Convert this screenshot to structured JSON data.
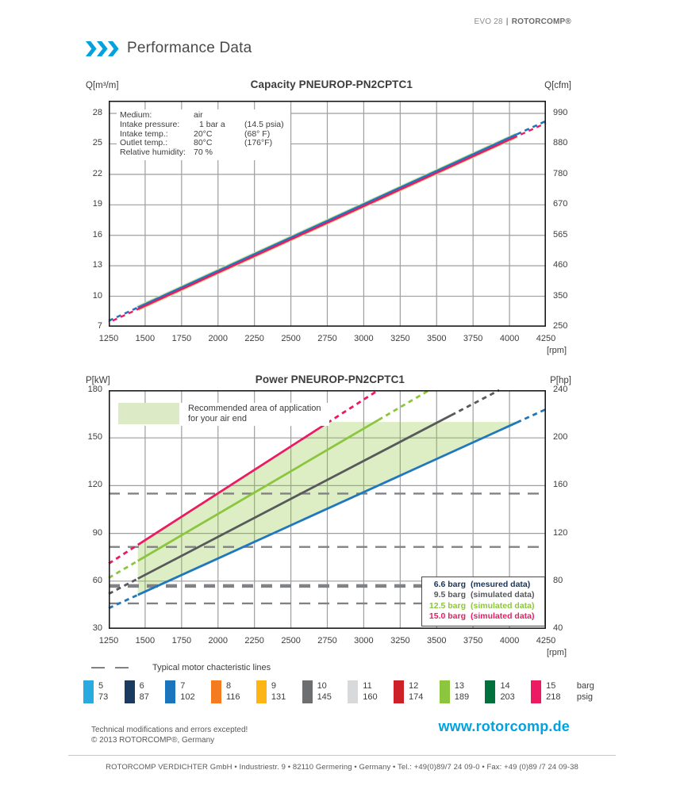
{
  "header": {
    "model": "EVO 28",
    "divider": "|",
    "brand": "ROTORCOMP®",
    "page_title": "Performance Data",
    "accent_color": "#00A3E0"
  },
  "chart_data": [
    {
      "id": "capacity",
      "type": "line",
      "title": "Capacity PNEUROP-PN2CPTC1",
      "y_unit_left": "Q[m³/m]",
      "y_unit_right": "Q[cfm]",
      "x_unit": "[rpm]",
      "xlim": [
        1250,
        4250
      ],
      "ylim": [
        7,
        29.25
      ],
      "x_ticks": [
        1250,
        1500,
        1750,
        2000,
        2250,
        2500,
        2750,
        3000,
        3250,
        3500,
        3750,
        4000,
        4250
      ],
      "y_ticks_left": [
        7,
        10,
        13,
        16,
        19,
        22,
        25,
        28
      ],
      "y_ticks_right": [
        250,
        350,
        460,
        565,
        670,
        780,
        880,
        990
      ],
      "grid": true,
      "info_box": {
        "rows": [
          {
            "label": "Medium:",
            "value": "air",
            "alt": ""
          },
          {
            "label": "Intake pressure:",
            "value": "1 bar a",
            "alt": "(14.5 psia)"
          },
          {
            "label": "Intake temp.:",
            "value": "20°C",
            "alt": "(68° F)"
          },
          {
            "label": "Outlet temp.:",
            "value": "80°C",
            "alt": "(176°F)"
          },
          {
            "label": "Relative humidity:",
            "value": "70 %",
            "alt": ""
          }
        ]
      },
      "series": [
        {
          "name": "capacity-envelope-12.5barg",
          "color": "#C9DDA0",
          "width": 7,
          "x": [
            1250,
            4250
          ],
          "y": [
            7.5,
            27.15
          ],
          "solid": [
            1450,
            4050
          ],
          "solid_only": true
        },
        {
          "name": "capacity-6.6barg",
          "color": "#1F77BE",
          "width": 2.6,
          "x": [
            1250,
            4250
          ],
          "y": [
            7.58,
            27.25
          ],
          "solid": [
            1450,
            4050
          ],
          "dash_offset": 0
        },
        {
          "name": "capacity-15.0barg",
          "color": "#EC1A63",
          "width": 2.4,
          "x": [
            1250,
            4250
          ],
          "y": [
            7.42,
            27.05
          ],
          "solid": [
            1450,
            4050
          ],
          "dash_offset": 5.5
        }
      ]
    },
    {
      "id": "power",
      "type": "line",
      "title": "Power PNEUROP-PN2CPTC1",
      "y_unit_left": "P[kW]",
      "y_unit_right": "P[hp]",
      "x_unit": "[rpm]",
      "xlim": [
        1250,
        4250
      ],
      "ylim": [
        30,
        180
      ],
      "x_ticks": [
        1250,
        1500,
        1750,
        2000,
        2250,
        2500,
        2750,
        3000,
        3250,
        3500,
        3750,
        4000,
        4250
      ],
      "y_ticks_left": [
        30,
        60,
        90,
        120,
        150,
        180
      ],
      "y_ticks_right": [
        40,
        80,
        120,
        160,
        200,
        240
      ],
      "grid": true,
      "recommended_area": {
        "label_line1": "Recommended area of application",
        "label_line2": "for  your air end",
        "fill": "#8DC63F",
        "fill_opacity": 0.3,
        "polygon": [
          [
            1450,
            51.3
          ],
          [
            1450,
            82.8
          ],
          [
            2780,
            160
          ],
          [
            4050,
            160
          ]
        ]
      },
      "motor_lines": {
        "label": "Typical motor chacteristic lines",
        "color": "#808285",
        "values_kw": [
          115,
          81.5,
          57,
          46
        ],
        "widths": [
          2.4,
          2.4,
          4.5,
          2.4
        ]
      },
      "series": [
        {
          "name": "power-15.0barg",
          "color": "#EC1A63",
          "width": 2.8,
          "x": [
            1250,
            3100
          ],
          "y": [
            71,
            180
          ],
          "solid": [
            1450,
            2750
          ]
        },
        {
          "name": "power-12.5barg",
          "color": "#8CC63E",
          "width": 2.8,
          "x": [
            1250,
            3450
          ],
          "y": [
            62,
            180
          ],
          "solid": [
            1450,
            3100
          ]
        },
        {
          "name": "power-9.5barg",
          "color": "#58595B",
          "width": 2.8,
          "x": [
            1250,
            3930
          ],
          "y": [
            52,
            180
          ],
          "solid": [
            1450,
            3600
          ]
        },
        {
          "name": "power-6.6barg",
          "color": "#1F77BE",
          "width": 2.8,
          "x": [
            1250,
            4250
          ],
          "y": [
            43,
            168
          ],
          "solid": [
            1450,
            4050
          ]
        }
      ],
      "legend": {
        "rows": [
          {
            "pressure": "6.6 barg",
            "note": "(mesured data)",
            "color": "#17365D"
          },
          {
            "pressure": "9.5 barg",
            "note": "(simulated data)",
            "color": "#58595B"
          },
          {
            "pressure": "12.5 barg",
            "note": "(simulated data)",
            "color": "#8CC63E"
          },
          {
            "pressure": "15.0 barg",
            "note": "(simulated data)",
            "color": "#EC1A63"
          }
        ]
      }
    }
  ],
  "pressure_scale": {
    "unit_top": "barg",
    "unit_bottom": "psig",
    "items": [
      {
        "barg": "5",
        "psig": "73",
        "color": "#29ABE2"
      },
      {
        "barg": "6",
        "psig": "87",
        "color": "#1B3A5F"
      },
      {
        "barg": "7",
        "psig": "102",
        "color": "#1B75BC"
      },
      {
        "barg": "8",
        "psig": "116",
        "color": "#F47B20"
      },
      {
        "barg": "9",
        "psig": "131",
        "color": "#FDB515"
      },
      {
        "barg": "10",
        "psig": "145",
        "color": "#6D6E70"
      },
      {
        "barg": "11",
        "psig": "160",
        "color": "#D8D9DB"
      },
      {
        "barg": "12",
        "psig": "174",
        "color": "#CE2027"
      },
      {
        "barg": "13",
        "psig": "189",
        "color": "#8CC63E"
      },
      {
        "barg": "14",
        "psig": "203",
        "color": "#00703C"
      },
      {
        "barg": "15",
        "psig": "218",
        "color": "#EC1A63"
      }
    ]
  },
  "footer": {
    "note_line1": "Technical modifications and errors excepted!",
    "note_line2": "© 2013 ROTORCOMP®, Germany",
    "website": "www.rotorcomp.de",
    "address": "ROTORCOMP VERDICHTER GmbH  •  Industriestr. 9  •  82110 Germering  •  Germany  •  Tel.: +49(0)89/7 24 09-0  •  Fax: +49 (0)89 /7 24 09-38"
  }
}
